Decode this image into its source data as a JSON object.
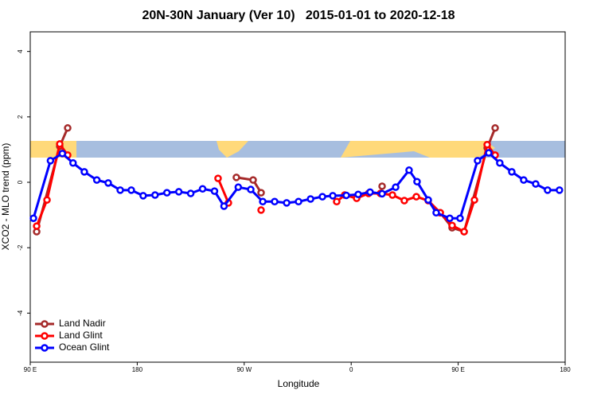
{
  "chart_data": {
    "type": "line",
    "title": "20N-30N January (Ver 10)   2015-01-01 to 2020-12-18",
    "x_label": "Longitude",
    "y_label": "XCO2 - MLO trend (ppm)",
    "xlim": [
      90,
      540
    ],
    "xticks": [
      {
        "value": 90,
        "label": "90 E"
      },
      {
        "value": 180,
        "label": "180"
      },
      {
        "value": 270,
        "label": "90 W"
      },
      {
        "value": 360,
        "label": "0"
      },
      {
        "value": 450,
        "label": "90 E"
      },
      {
        "value": 540,
        "label": "180"
      }
    ],
    "ylim": [
      -5.5,
      4.6
    ],
    "yticks": [
      -4,
      -2,
      0,
      2,
      4
    ],
    "grid": false,
    "legend": "bottom-left",
    "series": [
      {
        "name": "Land Nadir",
        "color": "#a52a2a",
        "x": [
          95.4,
          114.8,
          121.5,
          null,
          263.4,
          277.5,
          284.2,
          null,
          386,
          null,
          434.9,
          444.9,
          455,
          474.4,
          481.1
        ],
        "values": [
          -1.51,
          1.1,
          1.66,
          null,
          0.15,
          0.07,
          -0.32,
          null,
          -0.12,
          null,
          -0.93,
          -1.39,
          -1.51,
          1.05,
          1.66
        ]
      },
      {
        "name": "Land Glint",
        "color": "#ff0000",
        "x": [
          95.4,
          104.1,
          114.8,
          121.5,
          null,
          248,
          256.7,
          null,
          284.2,
          null,
          347.8,
          354.5,
          364.6,
          374.6,
          384.6,
          394.7,
          404.7,
          414.8,
          424.8,
          434.9,
          444.9,
          455,
          463.7,
          474.4,
          481.1
        ],
        "values": [
          -1.34,
          -0.54,
          1.17,
          0.83,
          null,
          0.12,
          -0.63,
          null,
          -0.85,
          null,
          -0.59,
          -0.39,
          -0.49,
          -0.34,
          -0.34,
          -0.39,
          -0.56,
          -0.44,
          -0.56,
          -0.93,
          -1.32,
          -1.51,
          -0.54,
          1.15,
          0.83
        ]
      },
      {
        "name": "Ocean Glint",
        "color": "#0000ff",
        "x": [
          92.7,
          107,
          117,
          126,
          135.5,
          146,
          155.6,
          165.7,
          175,
          185,
          195,
          205,
          215,
          225,
          235,
          245,
          253,
          265,
          275.5,
          285.6,
          295.6,
          305.7,
          315.7,
          325.8,
          335.8,
          344.5,
          355.9,
          365.9,
          375.9,
          386,
          397.4,
          408.7,
          415.4,
          424.8,
          431.5,
          442.9,
          451.6,
          466.3,
          475.7,
          485,
          495.1,
          505.1,
          515.2,
          525.2,
          535.2
        ],
        "values": [
          -1.1,
          0.66,
          0.88,
          0.59,
          0.32,
          0.07,
          -0.02,
          -0.24,
          -0.24,
          -0.41,
          -0.39,
          -0.32,
          -0.29,
          -0.34,
          -0.2,
          -0.27,
          -0.73,
          -0.15,
          -0.22,
          -0.59,
          -0.59,
          -0.63,
          -0.59,
          -0.51,
          -0.44,
          -0.41,
          -0.4,
          -0.37,
          -0.3,
          -0.35,
          -0.15,
          0.37,
          0.02,
          -0.54,
          -0.93,
          -1.1,
          -1.1,
          0.66,
          0.9,
          0.59,
          0.32,
          0.07,
          -0.05,
          -0.24,
          -0.24
        ]
      }
    ]
  }
}
